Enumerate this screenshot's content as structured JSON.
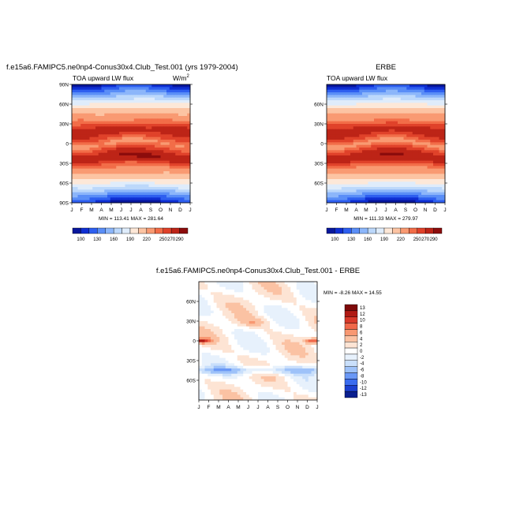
{
  "chart_data": [
    {
      "type": "heatmap",
      "title": "f.e15a6.FAMIPC5.ne0np4-Conus30x4.Club_Test.001 (yrs 1979-2004)",
      "subtitle": "TOA upward LW flux",
      "units_label": "W/m",
      "units_exp": "2",
      "stats": "MIN = 113.41 MAX = 281.64",
      "x_ticks": [
        "J",
        "F",
        "M",
        "A",
        "M",
        "J",
        "J",
        "A",
        "S",
        "O",
        "N",
        "D",
        "J"
      ],
      "y_ticks": [
        "90N",
        "60N",
        "30N",
        "0",
        "30S",
        "60S",
        "90S"
      ],
      "y_tick_values": [
        90,
        60,
        30,
        0,
        -30,
        -60,
        -90
      ],
      "ylim": [
        -90,
        90
      ],
      "colorbar_labels": [
        "100",
        "130",
        "160",
        "190",
        "220",
        "250",
        "270",
        "290"
      ],
      "min": 113.41,
      "max": 281.64
    },
    {
      "type": "heatmap",
      "title": "ERBE",
      "subtitle": "TOA upward LW flux",
      "stats": "MIN = 111.33 MAX = 279.97",
      "x_ticks": [
        "J",
        "F",
        "M",
        "A",
        "M",
        "J",
        "J",
        "A",
        "S",
        "O",
        "N",
        "D",
        "J"
      ],
      "y_ticks": [
        "60N",
        "30N",
        "0",
        "30S",
        "60S"
      ],
      "y_tick_values": [
        60,
        30,
        0,
        -30,
        -60
      ],
      "ylim": [
        -90,
        90
      ],
      "colorbar_labels": [
        "100",
        "130",
        "160",
        "190",
        "220",
        "250",
        "270",
        "290"
      ],
      "min": 111.33,
      "max": 279.97
    },
    {
      "type": "heatmap",
      "title": "f.e15a6.FAMIPC5.ne0np4-Conus30x4.Club_Test.001 - ERBE",
      "stats": "MIN = -8.26 MAX = 14.55",
      "x_ticks": [
        "J",
        "F",
        "M",
        "A",
        "M",
        "J",
        "J",
        "A",
        "S",
        "O",
        "N",
        "D",
        "J"
      ],
      "y_ticks": [
        "60N",
        "30N",
        "0",
        "30S",
        "60S"
      ],
      "y_tick_values": [
        60,
        30,
        0,
        -30,
        -60
      ],
      "ylim": [
        -90,
        90
      ],
      "colorbar_labels": [
        "13",
        "12",
        "10",
        "8",
        "6",
        "4",
        "2",
        "0",
        "-2",
        "-4",
        "-6",
        "-8",
        "-10",
        "-12",
        "-13"
      ],
      "min": -8.26,
      "max": 14.55
    }
  ],
  "colors": {
    "abs_scale": [
      "#08179c",
      "#0f2fd3",
      "#2e5ff0",
      "#5a8ef7",
      "#8cb6fa",
      "#bcd8fb",
      "#dfecfb",
      "#fde8d8",
      "#fcc4a3",
      "#f99a72",
      "#f26d48",
      "#e0422a",
      "#bd2417",
      "#8c0c0c"
    ],
    "diff_scale": [
      "#0a1f8f",
      "#1b40d0",
      "#3a6cef",
      "#6a98f6",
      "#9ec2f9",
      "#c9dffb",
      "#e7f1fc",
      "#ffffff",
      "#fde4d4",
      "#fbc2a3",
      "#f89872",
      "#f0684a",
      "#d8392a",
      "#b01a14",
      "#7e0a0a"
    ]
  }
}
